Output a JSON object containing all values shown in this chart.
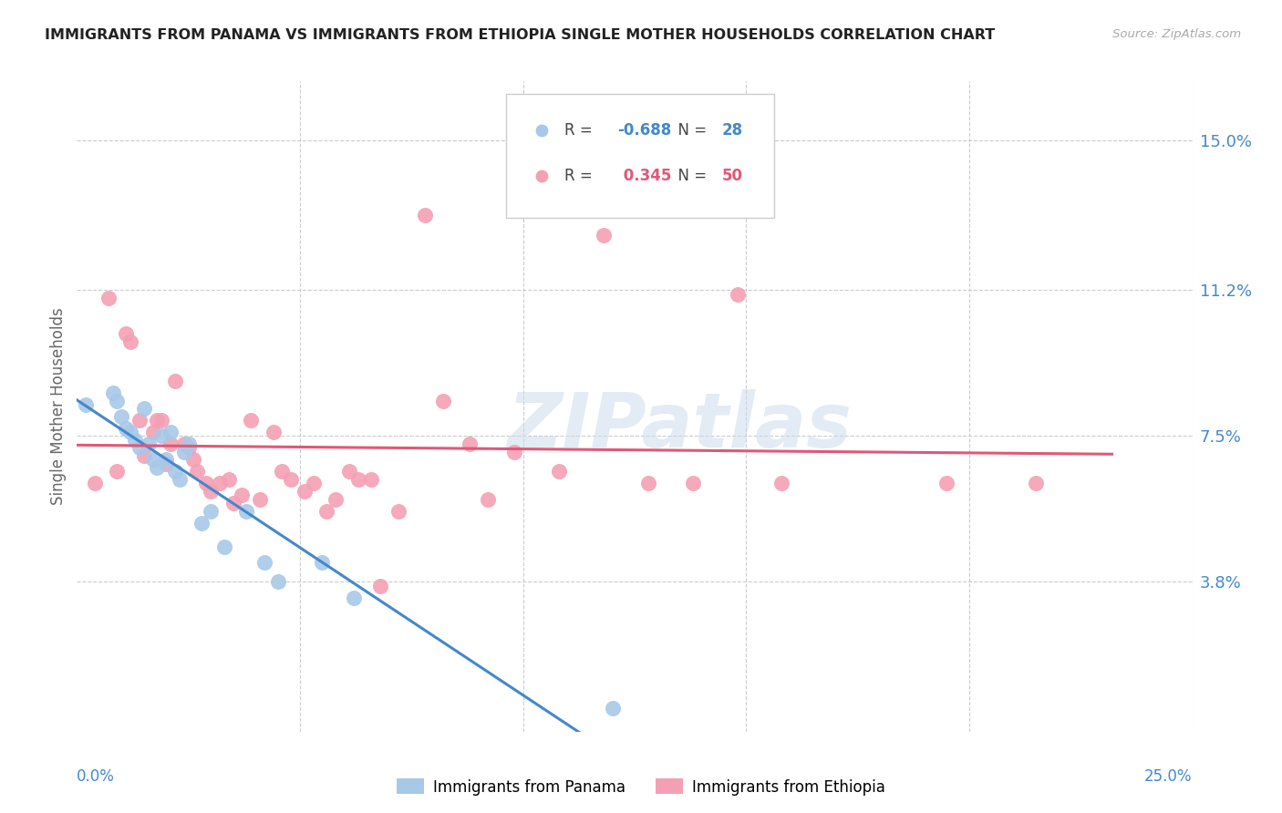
{
  "title": "IMMIGRANTS FROM PANAMA VS IMMIGRANTS FROM ETHIOPIA SINGLE MOTHER HOUSEHOLDS CORRELATION CHART",
  "source": "Source: ZipAtlas.com",
  "ylabel": "Single Mother Households",
  "yticks": [
    0.038,
    0.075,
    0.112,
    0.15
  ],
  "ytick_labels": [
    "3.8%",
    "7.5%",
    "11.2%",
    "15.0%"
  ],
  "xlim": [
    0.0,
    0.25
  ],
  "ylim": [
    0.0,
    0.165
  ],
  "panama_color": "#a8c8e8",
  "ethiopia_color": "#f4a0b4",
  "panama_line_color": "#4488cc",
  "ethiopia_line_color": "#e05878",
  "panama_R": -0.688,
  "panama_N": 28,
  "ethiopia_R": 0.345,
  "ethiopia_N": 50,
  "panama_scatter_x": [
    0.002,
    0.008,
    0.009,
    0.01,
    0.011,
    0.012,
    0.013,
    0.014,
    0.015,
    0.016,
    0.017,
    0.018,
    0.019,
    0.02,
    0.021,
    0.022,
    0.023,
    0.024,
    0.025,
    0.028,
    0.03,
    0.033,
    0.038,
    0.042,
    0.045,
    0.055,
    0.062,
    0.12
  ],
  "panama_scatter_y": [
    0.083,
    0.086,
    0.084,
    0.08,
    0.077,
    0.076,
    0.074,
    0.072,
    0.082,
    0.073,
    0.069,
    0.067,
    0.075,
    0.069,
    0.076,
    0.066,
    0.064,
    0.071,
    0.073,
    0.053,
    0.056,
    0.047,
    0.056,
    0.043,
    0.038,
    0.043,
    0.034,
    0.006
  ],
  "ethiopia_scatter_x": [
    0.004,
    0.007,
    0.009,
    0.011,
    0.012,
    0.014,
    0.015,
    0.017,
    0.018,
    0.019,
    0.02,
    0.021,
    0.022,
    0.024,
    0.025,
    0.026,
    0.027,
    0.029,
    0.03,
    0.032,
    0.034,
    0.035,
    0.037,
    0.039,
    0.041,
    0.044,
    0.046,
    0.048,
    0.051,
    0.053,
    0.056,
    0.058,
    0.061,
    0.063,
    0.066,
    0.068,
    0.072,
    0.078,
    0.082,
    0.088,
    0.092,
    0.098,
    0.108,
    0.118,
    0.128,
    0.138,
    0.148,
    0.158,
    0.195,
    0.215
  ],
  "ethiopia_scatter_y": [
    0.063,
    0.11,
    0.066,
    0.101,
    0.099,
    0.079,
    0.07,
    0.076,
    0.079,
    0.079,
    0.068,
    0.073,
    0.089,
    0.073,
    0.072,
    0.069,
    0.066,
    0.063,
    0.061,
    0.063,
    0.064,
    0.058,
    0.06,
    0.079,
    0.059,
    0.076,
    0.066,
    0.064,
    0.061,
    0.063,
    0.056,
    0.059,
    0.066,
    0.064,
    0.064,
    0.037,
    0.056,
    0.131,
    0.084,
    0.073,
    0.059,
    0.071,
    0.066,
    0.126,
    0.063,
    0.063,
    0.111,
    0.063,
    0.063,
    0.063
  ],
  "watermark": "ZIPatlas",
  "background_color": "#ffffff",
  "grid_color": "#cccccc",
  "title_color": "#222222",
  "source_color": "#aaaaaa",
  "ylabel_color": "#666666",
  "tick_label_color": "#4488cc"
}
